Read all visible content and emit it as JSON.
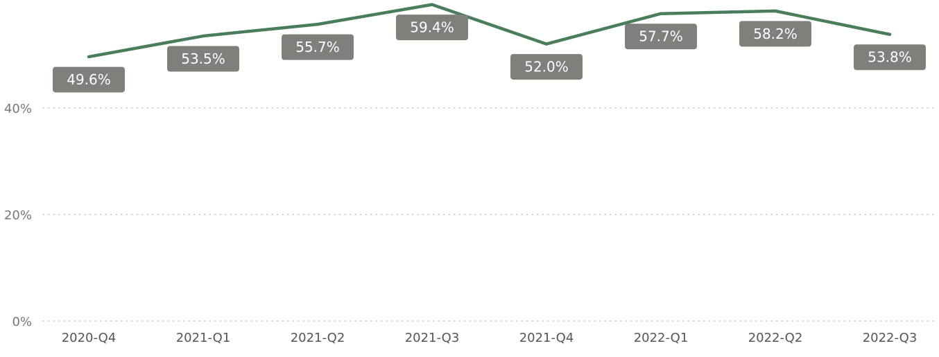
{
  "chart_data": {
    "type": "line",
    "title": "",
    "xlabel": "",
    "ylabel": "",
    "categories": [
      "2020-Q4",
      "2021-Q1",
      "2021-Q2",
      "2021-Q3",
      "2021-Q4",
      "2022-Q1",
      "2022-Q2",
      "2022-Q3"
    ],
    "series": [
      {
        "values": [
          49.6,
          53.5,
          55.7,
          59.4,
          52.0,
          57.7,
          58.2,
          53.8
        ],
        "labels": [
          "49.6%",
          "53.5%",
          "55.7%",
          "59.4%",
          "52.0%",
          "57.7%",
          "58.2%",
          "53.8%"
        ],
        "color": "#4a7d5a"
      }
    ],
    "y_ticks": [
      {
        "value": 0,
        "label": "0%"
      },
      {
        "value": 20,
        "label": "20%"
      },
      {
        "value": 40,
        "label": "40%"
      }
    ],
    "ylim": [
      0,
      60
    ],
    "grid": true,
    "legend": "none",
    "label_box_color": "#7f7f7c"
  }
}
